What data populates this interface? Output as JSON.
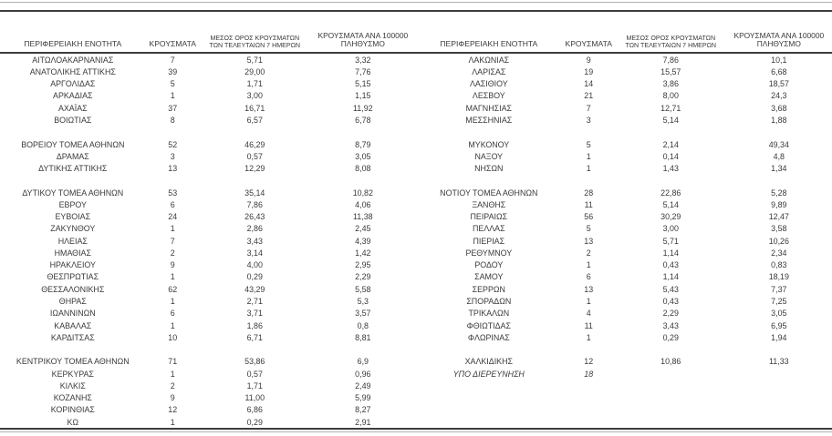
{
  "colors": {
    "text": "#3a3a3a",
    "rule_dark": "#3d3d3d",
    "rule_light": "#b0b0b0",
    "background": "#ffffff"
  },
  "table": {
    "headers": {
      "region": "ΠΕΡΙΦΕΡΕΙΑΚΗ ΕΝΟΤΗΤΑ",
      "cases": "ΚΡΟΥΣΜΑΤΑ",
      "avg7_line1": "ΜΕΣΟΣ ΟΡΟΣ ΚΡΟΥΣΜΑΤΩΝ",
      "avg7_line2": "ΤΩΝ ΤΕΛΕΥΤΑΙΩΝ 7 ΗΜΕΡΩΝ",
      "per100k_line1": "ΚΡΟΥΣΜΑΤΑ ΑΝΑ 100000",
      "per100k_line2": "ΠΛΗΘΥΣΜΟ"
    },
    "left_rows": [
      {
        "region": "ΑΙΤΩΛΟΑΚΑΡΝΑΝΙΑΣ",
        "cases": "7",
        "avg7": "5,71",
        "per100k": "3,32"
      },
      {
        "region": "ΑΝΑΤΟΛΙΚΗΣ ΑΤΤΙΚΗΣ",
        "cases": "39",
        "avg7": "29,00",
        "per100k": "7,76"
      },
      {
        "region": "ΑΡΓΟΛΙΔΑΣ",
        "cases": "5",
        "avg7": "1,71",
        "per100k": "5,15"
      },
      {
        "region": "ΑΡΚΑΔΙΑΣ",
        "cases": "1",
        "avg7": "3,00",
        "per100k": "1,15"
      },
      {
        "region": "ΑΧΑΪΑΣ",
        "cases": "37",
        "avg7": "16,71",
        "per100k": "11,92"
      },
      {
        "region": "ΒΟΙΩΤΙΑΣ",
        "cases": "8",
        "avg7": "6,57",
        "per100k": "6,78"
      },
      null,
      {
        "region": "ΒΟΡΕΙΟΥ ΤΟΜΕΑ ΑΘΗΝΩΝ",
        "cases": "52",
        "avg7": "46,29",
        "per100k": "8,79"
      },
      {
        "region": "ΔΡΑΜΑΣ",
        "cases": "3",
        "avg7": "0,57",
        "per100k": "3,05"
      },
      {
        "region": "ΔΥΤΙΚΗΣ ΑΤΤΙΚΗΣ",
        "cases": "13",
        "avg7": "12,29",
        "per100k": "8,08"
      },
      null,
      {
        "region": "ΔΥΤΙΚΟΥ ΤΟΜΕΑ ΑΘΗΝΩΝ",
        "cases": "53",
        "avg7": "35,14",
        "per100k": "10,82"
      },
      {
        "region": "ΕΒΡΟΥ",
        "cases": "6",
        "avg7": "7,86",
        "per100k": "4,06"
      },
      {
        "region": "ΕΥΒΟΙΑΣ",
        "cases": "24",
        "avg7": "26,43",
        "per100k": "11,38"
      },
      {
        "region": "ΖΑΚΥΝΘΟΥ",
        "cases": "1",
        "avg7": "2,86",
        "per100k": "2,45"
      },
      {
        "region": "ΗΛΕΙΑΣ",
        "cases": "7",
        "avg7": "3,43",
        "per100k": "4,39"
      },
      {
        "region": "ΗΜΑΘΙΑΣ",
        "cases": "2",
        "avg7": "3,14",
        "per100k": "1,42"
      },
      {
        "region": "ΗΡΑΚΛΕΙΟΥ",
        "cases": "9",
        "avg7": "4,00",
        "per100k": "2,95"
      },
      {
        "region": "ΘΕΣΠΡΩΤΙΑΣ",
        "cases": "1",
        "avg7": "0,29",
        "per100k": "2,29"
      },
      {
        "region": "ΘΕΣΣΑΛΟΝΙΚΗΣ",
        "cases": "62",
        "avg7": "43,29",
        "per100k": "5,58"
      },
      {
        "region": "ΘΗΡΑΣ",
        "cases": "1",
        "avg7": "2,71",
        "per100k": "5,3"
      },
      {
        "region": "ΙΩΑΝΝΙΝΩΝ",
        "cases": "6",
        "avg7": "3,71",
        "per100k": "3,57"
      },
      {
        "region": "ΚΑΒΑΛΑΣ",
        "cases": "1",
        "avg7": "1,86",
        "per100k": "0,8"
      },
      {
        "region": "ΚΑΡΔΙΤΣΑΣ",
        "cases": "10",
        "avg7": "6,71",
        "per100k": "8,81"
      },
      null,
      {
        "region": "ΚΕΝΤΡΙΚΟΥ ΤΟΜΕΑ ΑΘΗΝΩΝ",
        "cases": "71",
        "avg7": "53,86",
        "per100k": "6,9"
      },
      {
        "region": "ΚΕΡΚΥΡΑΣ",
        "cases": "1",
        "avg7": "0,57",
        "per100k": "0,96"
      },
      {
        "region": "ΚΙΛΚΙΣ",
        "cases": "2",
        "avg7": "1,71",
        "per100k": "2,49"
      },
      {
        "region": "ΚΟΖΑΝΗΣ",
        "cases": "9",
        "avg7": "11,00",
        "per100k": "5,99"
      },
      {
        "region": "ΚΟΡΙΝΘΙΑΣ",
        "cases": "12",
        "avg7": "6,86",
        "per100k": "8,27"
      },
      {
        "region": "ΚΩ",
        "cases": "1",
        "avg7": "0,29",
        "per100k": "2,91"
      }
    ],
    "right_rows": [
      {
        "region": "ΛΑΚΩΝΙΑΣ",
        "cases": "9",
        "avg7": "7,86",
        "per100k": "10,1"
      },
      {
        "region": "ΛΑΡΙΣΑΣ",
        "cases": "19",
        "avg7": "15,57",
        "per100k": "6,68"
      },
      {
        "region": "ΛΑΣΙΘΙΟΥ",
        "cases": "14",
        "avg7": "3,86",
        "per100k": "18,57"
      },
      {
        "region": "ΛΕΣΒΟΥ",
        "cases": "21",
        "avg7": "8,00",
        "per100k": "24,3"
      },
      {
        "region": "ΜΑΓΝΗΣΙΑΣ",
        "cases": "7",
        "avg7": "12,71",
        "per100k": "3,68"
      },
      {
        "region": "ΜΕΣΣΗΝΙΑΣ",
        "cases": "3",
        "avg7": "5,14",
        "per100k": "1,88"
      },
      null,
      {
        "region": "ΜΥΚΟΝΟΥ",
        "cases": "5",
        "avg7": "2,14",
        "per100k": "49,34"
      },
      {
        "region": "ΝΑΞΟΥ",
        "cases": "1",
        "avg7": "0,14",
        "per100k": "4,8"
      },
      {
        "region": "ΝΗΣΩΝ",
        "cases": "1",
        "avg7": "1,43",
        "per100k": "1,34"
      },
      null,
      {
        "region": "ΝΟΤΙΟΥ ΤΟΜΕΑ ΑΘΗΝΩΝ",
        "cases": "28",
        "avg7": "22,86",
        "per100k": "5,28"
      },
      {
        "region": "ΞΑΝΘΗΣ",
        "cases": "11",
        "avg7": "5,14",
        "per100k": "9,89"
      },
      {
        "region": "ΠΕΙΡΑΙΩΣ",
        "cases": "56",
        "avg7": "30,29",
        "per100k": "12,47"
      },
      {
        "region": "ΠΕΛΛΑΣ",
        "cases": "5",
        "avg7": "3,00",
        "per100k": "3,58"
      },
      {
        "region": "ΠΙΕΡΙΑΣ",
        "cases": "13",
        "avg7": "5,71",
        "per100k": "10,26"
      },
      {
        "region": "ΡΕΘΥΜΝΟΥ",
        "cases": "2",
        "avg7": "1,14",
        "per100k": "2,34"
      },
      {
        "region": "ΡΟΔΟΥ",
        "cases": "1",
        "avg7": "0,43",
        "per100k": "0,83"
      },
      {
        "region": "ΣΑΜΟΥ",
        "cases": "6",
        "avg7": "1,14",
        "per100k": "18,19"
      },
      {
        "region": "ΣΕΡΡΩΝ",
        "cases": "13",
        "avg7": "5,43",
        "per100k": "7,37"
      },
      {
        "region": "ΣΠΟΡΑΔΩΝ",
        "cases": "1",
        "avg7": "0,43",
        "per100k": "7,25"
      },
      {
        "region": "ΤΡΙΚΑΛΩΝ",
        "cases": "4",
        "avg7": "2,29",
        "per100k": "3,05"
      },
      {
        "region": "ΦΘΙΩΤΙΔΑΣ",
        "cases": "11",
        "avg7": "3,43",
        "per100k": "6,95"
      },
      {
        "region": "ΦΛΩΡΙΝΑΣ",
        "cases": "1",
        "avg7": "0,29",
        "per100k": "1,94"
      },
      null,
      {
        "region": "ΧΑΛΚΙΔΙΚΗΣ",
        "cases": "12",
        "avg7": "10,86",
        "per100k": "11,33"
      },
      {
        "region": "ΥΠΟ ΔΙΕΡΕΥΝΗΣΗ",
        "cases": "18",
        "avg7": "",
        "per100k": "",
        "italic": true
      }
    ]
  }
}
